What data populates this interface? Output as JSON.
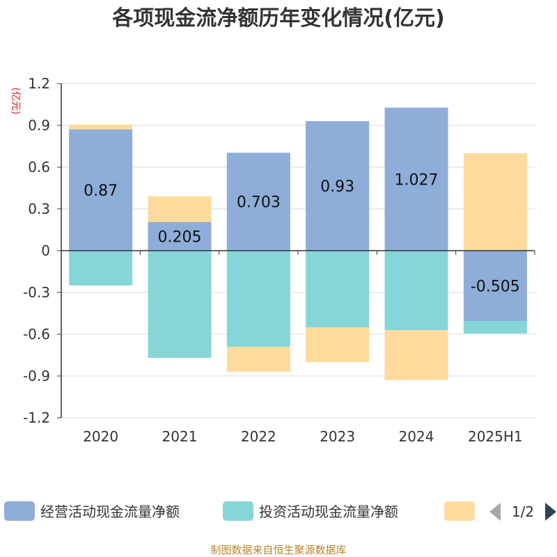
{
  "chart_data": {
    "type": "bar",
    "stacked": true,
    "title": "各项现金流净额历年变化情况(亿元)",
    "ylabel": "(亿元)",
    "categories": [
      "2020",
      "2021",
      "2022",
      "2023",
      "2024",
      "2025H1"
    ],
    "ylim": [
      -1.2,
      1.2
    ],
    "yticks": [
      1.2,
      0.9,
      0.6,
      0.3,
      0,
      -0.3,
      -0.6,
      -0.9,
      -1.2
    ],
    "ytick_labels": [
      "1.2",
      "0.9",
      "0.6",
      "0.3",
      "0",
      "-0.3",
      "-0.6",
      "-0.9",
      "-1.2"
    ],
    "grid": true,
    "legend_position": "bottom",
    "series": [
      {
        "name": "经营活动现金流量净额",
        "color": "#8eadd9",
        "values": [
          0.87,
          0.205,
          0.703,
          0.93,
          1.027,
          -0.505
        ],
        "data_labels": [
          "0.87",
          "0.205",
          "0.703",
          "0.93",
          "1.027",
          "-0.505"
        ]
      },
      {
        "name": "投资活动现金流量净额",
        "color": "#86d6d8",
        "values": [
          -0.25,
          -0.77,
          -0.69,
          -0.55,
          -0.57,
          -0.09
        ]
      },
      {
        "name": "",
        "color": "#fedb9c",
        "values": [
          0.035,
          0.185,
          -0.18,
          -0.25,
          -0.36,
          0.7
        ]
      }
    ]
  },
  "legend": {
    "items": [
      "经营活动现金流量净额",
      "投资活动现金流量净额",
      ""
    ],
    "page_indicator": "1/2"
  },
  "source": "制图数据来自恒生聚源数据库",
  "colors": {
    "axis": "#333333",
    "grid": "#d9d9d9",
    "unit": "#e02020",
    "source": "#b8862e",
    "pager_prev": "#a8a8a8",
    "pager_next": "#2f4554"
  },
  "icons": {
    "pager_prev": "triangle-left-icon",
    "pager_next": "triangle-right-icon"
  }
}
